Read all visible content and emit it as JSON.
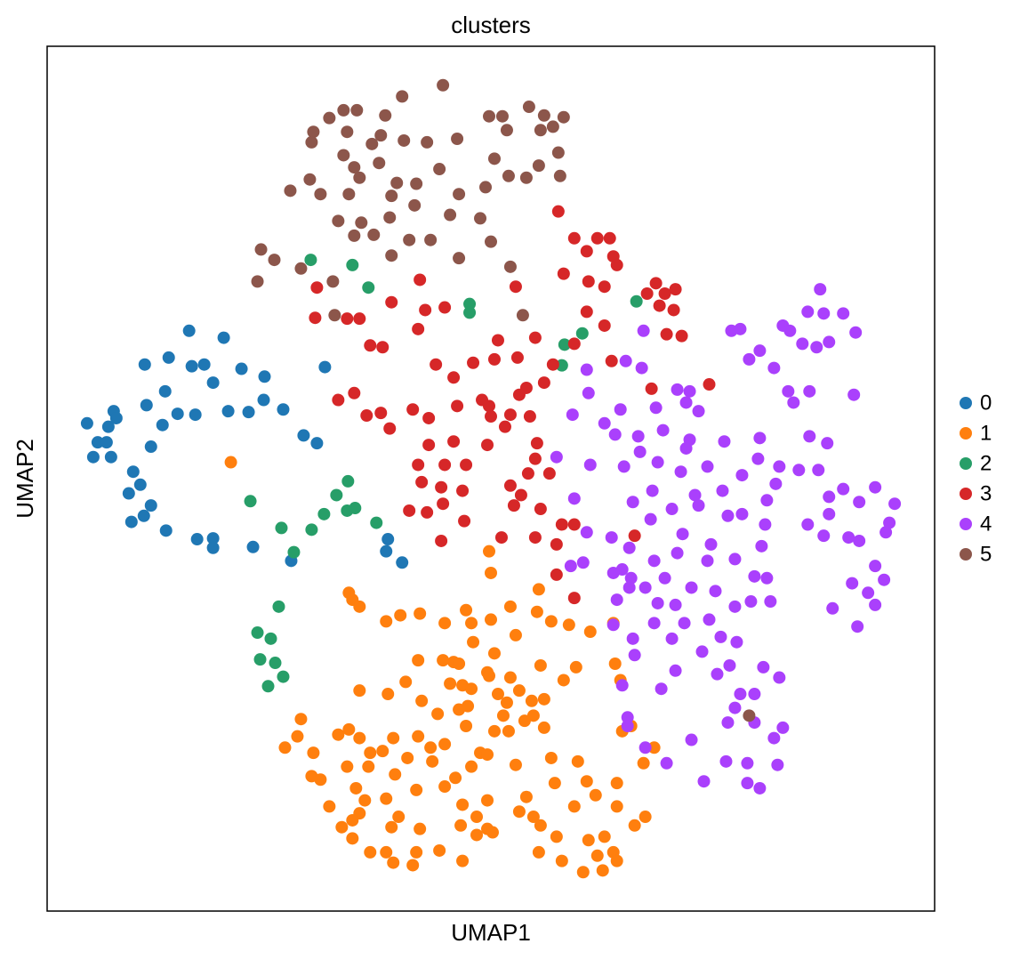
{
  "chart_data": {
    "type": "scatter",
    "title": "clusters",
    "x_label": "UMAP1",
    "y_label": "UMAP2",
    "xlim": [
      0,
      100
    ],
    "ylim": [
      0,
      100
    ],
    "grid": false,
    "legend": "right",
    "series": [
      {
        "name": "0",
        "color": "#1f77b4",
        "x": [
          4.5,
          5.2,
          5.7,
          6.9,
          7.5,
          7.8,
          7.2,
          6.7,
          11.0,
          13.7,
          16.0,
          19.9,
          17.7,
          21.9,
          24.5,
          18.7,
          11.2,
          14.7,
          16.7,
          20.4,
          22.7,
          26.6,
          24.4,
          13.0,
          11.7,
          9.7,
          10.5,
          9.2,
          11.7,
          10.9,
          9.5,
          13.4,
          16.9,
          18.7,
          18.7,
          23.2,
          28.9,
          30.4,
          31.3,
          38.4,
          40.0,
          38.2,
          27.5,
          16.3,
          13.3
        ],
        "y": [
          56.4,
          52.5,
          54.2,
          56.0,
          57.8,
          57.0,
          52.5,
          54.2,
          63.2,
          64.0,
          67.1,
          66.3,
          63.2,
          62.7,
          61.8,
          61.1,
          58.5,
          57.5,
          57.4,
          57.8,
          57.7,
          58.0,
          59.1,
          56.2,
          53.7,
          50.8,
          49.3,
          48.3,
          46.9,
          45.7,
          45.0,
          44.0,
          43.0,
          43.1,
          42.0,
          42.1,
          55.0,
          54.1,
          62.9,
          43.0,
          40.3,
          41.6,
          40.5,
          63.0,
          60.1
        ]
      },
      {
        "name": "1",
        "color": "#ff7f0e",
        "x": [
          20.7,
          49.8,
          50.0,
          34.0,
          34.4,
          35.2,
          38.2,
          39.8,
          42.0,
          44.8,
          47.2,
          47.8,
          50.0,
          52.2,
          55.4,
          55.2,
          56.8,
          58.8,
          61.2,
          63.8,
          52.8,
          50.4,
          48.0,
          45.8,
          41.8,
          44.6,
          46.4,
          49.6,
          46.8,
          45.4,
          47.8,
          49.8,
          52.2,
          53.2,
          50.8,
          55.6,
          58.2,
          59.6,
          64.0,
          64.6,
          35.2,
          38.4,
          40.4,
          42.2,
          44.0,
          46.4,
          47.4,
          51.8,
          51.4,
          54.6,
          56.0,
          28.6,
          28.2,
          26.8,
          32.8,
          34.0,
          35.2,
          36.4,
          39.0,
          41.8,
          43.2,
          44.8,
          47.2,
          48.8,
          50.4,
          52.0,
          54.8,
          56.0,
          53.8,
          64.8,
          65.8,
          68.4,
          67.2,
          64.2,
          59.8,
          56.8,
          52.8,
          49.6,
          47.8,
          46.0,
          43.4,
          40.6,
          37.8,
          39.2,
          36.2,
          33.8,
          30.0,
          29.8,
          30.8,
          34.8,
          35.8,
          38.2,
          41.6,
          44.8,
          46.8,
          49.6,
          54.0,
          57.2,
          60.8,
          61.8,
          59.4,
          64.2,
          67.4,
          66.2,
          54.8,
          53.2,
          48.4,
          49.6,
          46.6,
          44.2,
          42.0,
          39.6,
          38.8,
          35.2,
          34.4,
          31.8,
          33.2,
          34.4,
          36.4,
          38.2,
          41.6,
          41.2,
          39.0,
          46.8,
          48.4,
          50.2,
          55.6,
          57.4,
          61.0,
          62.8,
          63.8,
          62.0,
          60.4,
          58.0,
          55.4,
          62.6,
          64.2
        ],
        "y": [
          51.9,
          41.6,
          39.1,
          36.8,
          36.0,
          35.2,
          33.5,
          34.2,
          34.4,
          33.3,
          34.8,
          33.3,
          33.7,
          35.2,
          37.2,
          34.6,
          33.5,
          33.1,
          32.3,
          33.3,
          31.9,
          29.8,
          31.1,
          28.8,
          29.0,
          29.0,
          28.6,
          27.6,
          26.1,
          26.3,
          25.7,
          27.2,
          27.0,
          25.5,
          25.1,
          28.4,
          26.7,
          28.2,
          28.6,
          26.7,
          25.5,
          25.1,
          26.5,
          24.3,
          22.8,
          23.3,
          23.7,
          24.1,
          22.6,
          24.3,
          24.5,
          22.2,
          20.2,
          18.9,
          20.4,
          21.0,
          20.0,
          18.3,
          20.0,
          20.2,
          18.9,
          19.3,
          21.4,
          18.3,
          20.8,
          20.8,
          22.6,
          21.2,
          22.0,
          20.8,
          21.4,
          18.9,
          17.1,
          14.8,
          17.3,
          17.7,
          16.9,
          18.1,
          16.7,
          15.4,
          17.3,
          17.7,
          18.5,
          15.8,
          16.7,
          16.7,
          18.3,
          15.6,
          15.2,
          14.2,
          12.8,
          13.0,
          14.0,
          14.4,
          12.3,
          12.8,
          13.2,
          14.8,
          15.0,
          13.4,
          12.1,
          12.1,
          10.9,
          9.9,
          10.9,
          11.5,
          10.9,
          9.5,
          9.9,
          7.0,
          9.5,
          10.9,
          9.7,
          11.3,
          10.5,
          12.1,
          9.7,
          8.4,
          6.8,
          6.8,
          6.8,
          5.3,
          5.6,
          5.8,
          8.8,
          9.1,
          9.9,
          8.6,
          8.2,
          8.6,
          6.8,
          6.4,
          4.5,
          5.8,
          6.8,
          4.7,
          5.8
        ]
      },
      {
        "name": "2",
        "color": "#279e68",
        "x": [
          29.7,
          36.2,
          47.6,
          47.6,
          66.4,
          58.3,
          58.0,
          60.3,
          34.4,
          33.9,
          32.6,
          31.2,
          33.8,
          34.7,
          37.1,
          29.8,
          26.4,
          27.8,
          22.9,
          26.1,
          23.7,
          25.2,
          24.0,
          25.7,
          26.6,
          24.9
        ],
        "y": [
          75.3,
          72.1,
          70.2,
          69.2,
          70.5,
          65.5,
          63.1,
          66.8,
          74.7,
          49.7,
          48.1,
          45.9,
          46.3,
          46.6,
          44.9,
          44.1,
          44.3,
          41.5,
          47.4,
          35.2,
          32.2,
          31.5,
          29.1,
          28.7,
          27.1,
          26.0
        ]
      },
      {
        "name": "3",
        "color": "#d62728",
        "x": [
          57.6,
          59.4,
          62.0,
          63.4,
          60.8,
          63.8,
          64.2,
          58.2,
          61.0,
          62.8,
          68.6,
          70.8,
          69.6,
          67.6,
          69.0,
          70.6,
          69.8,
          71.5,
          74.6,
          68.1,
          62.8,
          60.8,
          59.4,
          63.6,
          52.8,
          42.0,
          44.8,
          42.6,
          38.8,
          30.4,
          30.2,
          33.8,
          35.2,
          36.4,
          37.8,
          41.8,
          43.8,
          45.8,
          50.8,
          53.0,
          55.0,
          50.4,
          48.0,
          56.0,
          54.0,
          49.8,
          53.2,
          57.0,
          32.8,
          34.6,
          36.0,
          37.6,
          38.6,
          41.2,
          43.0,
          46.2,
          49.0,
          50.0,
          52.2,
          54.4,
          51.6,
          49.6,
          45.8,
          43.0,
          55.2,
          55.0,
          41.8,
          44.8,
          47.2,
          42.2,
          44.4,
          46.8,
          54.2,
          52.2,
          56.6,
          53.4,
          40.8,
          42.8,
          44.6,
          47.0,
          52.6,
          55.6,
          58.0,
          44.4,
          51.2,
          55.0,
          57.4,
          59.4,
          66.2,
          57.4,
          59.4
        ],
        "y": [
          80.9,
          77.8,
          77.8,
          77.8,
          76.3,
          75.7,
          74.7,
          73.7,
          72.8,
          72.2,
          72.6,
          71.9,
          71.4,
          71.4,
          70.0,
          69.5,
          66.7,
          66.5,
          60.9,
          60.4,
          67.7,
          69.3,
          65.6,
          63.6,
          72.2,
          73.0,
          69.8,
          69.5,
          70.4,
          72.1,
          68.6,
          68.5,
          68.5,
          65.4,
          65.2,
          67.3,
          63.2,
          61.7,
          66.0,
          64.0,
          66.3,
          63.8,
          63.4,
          61.1,
          60.5,
          58.4,
          59.7,
          63.2,
          59.1,
          59.9,
          57.3,
          57.6,
          55.8,
          58.0,
          57.0,
          58.4,
          59.1,
          57.2,
          57.4,
          57.2,
          56.0,
          53.9,
          54.3,
          53.9,
          54.1,
          52.3,
          51.6,
          51.6,
          51.6,
          49.6,
          49.0,
          48.6,
          50.6,
          49.2,
          50.6,
          48.1,
          46.3,
          46.1,
          47.1,
          45.1,
          46.9,
          46.5,
          44.7,
          42.8,
          43.2,
          43.2,
          42.4,
          44.7,
          43.4,
          38.9,
          36.2
        ]
      },
      {
        "name": "4",
        "color": "#aa40fc",
        "x": [
          87.1,
          85.7,
          87.5,
          89.7,
          82.9,
          83.7,
          91.1,
          77.1,
          78.1,
          79.1,
          80.3,
          85.1,
          86.7,
          88.1,
          81.9,
          83.5,
          84.1,
          85.9,
          90.9,
          67.2,
          65.2,
          67.0,
          60.8,
          61.0,
          59.2,
          64.6,
          62.8,
          64.0,
          71.0,
          72.4,
          72.0,
          73.4,
          68.6,
          69.4,
          66.6,
          72.4,
          76.3,
          80.3,
          85.9,
          87.9,
          57.4,
          61.2,
          66.8,
          65.0,
          68.8,
          72.0,
          71.4,
          74.4,
          78.3,
          80.1,
          82.5,
          84.7,
          86.9,
          89.7,
          93.3,
          91.5,
          88.1,
          82.1,
          76.1,
          73.0,
          68.2,
          66.0,
          59.4,
          70.4,
          73.4,
          76.7,
          78.3,
          81.1,
          80.9,
          88.1,
          85.7,
          87.5,
          90.3,
          91.5,
          95.5,
          94.9,
          94.5,
          60.8,
          63.6,
          68.0,
          71.6,
          74.8,
          77.5,
          80.5,
          81.1,
          79.7,
          74.4,
          71.0,
          68.4,
          69.6,
          64.8,
          65.8,
          65.6,
          60.4,
          59.0,
          93.3,
          94.3,
          90.7,
          92.5,
          93.3,
          88.5,
          91.3,
          63.8,
          65.6,
          64.2,
          67.4,
          68.8,
          70.8,
          72.6,
          75.3,
          77.5,
          79.3,
          81.5,
          71.8,
          74.6,
          75.9,
          77.7,
          68.4,
          70.4,
          63.8,
          66.0,
          73.8,
          66.2,
          64.8,
          69.2,
          70.8,
          75.5,
          76.9,
          80.7,
          82.5,
          78.1,
          79.7,
          77.5,
          76.7,
          79.7,
          82.9,
          81.9,
          65.4,
          65.4,
          72.6,
          69.8,
          76.5,
          78.9,
          82.3,
          74.0,
          78.9,
          80.3,
          67.4
        ],
        "y": [
          71.9,
          69.3,
          69.1,
          69.1,
          67.7,
          67.1,
          66.9,
          67.1,
          67.3,
          63.8,
          64.8,
          65.6,
          65.2,
          65.8,
          62.8,
          60.1,
          58.8,
          60.1,
          59.7,
          67.1,
          63.6,
          62.8,
          62.6,
          59.9,
          57.4,
          58.0,
          56.4,
          55.1,
          60.3,
          60.1,
          58.8,
          57.8,
          58.2,
          55.6,
          54.9,
          54.5,
          54.3,
          54.7,
          54.9,
          54.1,
          52.5,
          51.6,
          53.1,
          51.4,
          51.9,
          53.5,
          50.8,
          51.4,
          50.4,
          52.3,
          51.4,
          51.0,
          51.0,
          48.8,
          49.0,
          47.3,
          47.9,
          49.4,
          48.6,
          48.1,
          48.6,
          47.3,
          47.7,
          46.5,
          46.9,
          45.7,
          45.9,
          47.5,
          44.7,
          45.9,
          44.7,
          43.4,
          43.2,
          42.8,
          47.1,
          44.9,
          43.8,
          43.8,
          43.2,
          45.3,
          43.6,
          42.4,
          40.7,
          42.2,
          38.5,
          38.7,
          40.5,
          41.4,
          40.5,
          38.5,
          39.5,
          38.5,
          42.0,
          40.3,
          39.9,
          39.9,
          38.3,
          37.9,
          36.8,
          35.4,
          35.0,
          32.9,
          39.1,
          37.4,
          36.0,
          37.4,
          35.6,
          35.4,
          37.4,
          37.0,
          35.2,
          35.8,
          35.8,
          33.3,
          33.7,
          31.7,
          31.1,
          33.3,
          31.5,
          33.1,
          31.5,
          30.0,
          29.6,
          26.1,
          25.7,
          27.8,
          27.4,
          28.4,
          28.2,
          27.0,
          25.1,
          25.1,
          23.5,
          21.8,
          21.8,
          21.2,
          20.0,
          22.4,
          21.4,
          19.8,
          17.1,
          17.3,
          17.1,
          16.9,
          15.0,
          14.8,
          14.2,
          18.9
        ]
      },
      {
        "name": "5",
        "color": "#8c564b",
        "x": [
          44.6,
          40.0,
          38.1,
          34.9,
          33.4,
          31.8,
          30.0,
          29.8,
          33.8,
          37.6,
          40.2,
          42.8,
          46.2,
          49.8,
          51.3,
          54.3,
          56.0,
          58.2,
          57.0,
          51.8,
          55.6,
          36.6,
          33.4,
          34.6,
          37.4,
          35.2,
          39.4,
          41.6,
          44.2,
          46.4,
          50.4,
          49.4,
          52.0,
          55.4,
          54.0,
          57.8,
          57.6,
          27.4,
          29.6,
          30.8,
          34.0,
          38.8,
          41.4,
          45.4,
          48.8,
          32.8,
          35.4,
          38.6,
          34.6,
          36.8,
          40.8,
          43.2,
          50.0,
          38.8,
          46.4,
          52.2,
          24.1,
          25.6,
          23.7,
          28.6,
          32.2,
          32.4,
          53.6,
          79.1
        ],
        "y": [
          95.5,
          94.2,
          92.0,
          92.6,
          92.6,
          91.7,
          90.1,
          88.9,
          90.1,
          89.7,
          89.1,
          88.9,
          89.3,
          91.9,
          91.9,
          93.0,
          92.0,
          91.8,
          90.7,
          90.3,
          90.3,
          88.7,
          87.4,
          86.0,
          86.5,
          84.8,
          84.2,
          84.1,
          85.8,
          82.9,
          87.0,
          83.7,
          85.0,
          86.2,
          84.8,
          85.0,
          87.7,
          83.3,
          84.6,
          82.9,
          82.9,
          82.7,
          81.6,
          80.5,
          80.1,
          79.8,
          79.6,
          80.2,
          78.1,
          78.2,
          77.6,
          77.6,
          77.4,
          75.8,
          75.5,
          74.5,
          76.5,
          75.3,
          72.8,
          74.3,
          72.8,
          68.9,
          68.9,
          22.6
        ]
      }
    ]
  }
}
